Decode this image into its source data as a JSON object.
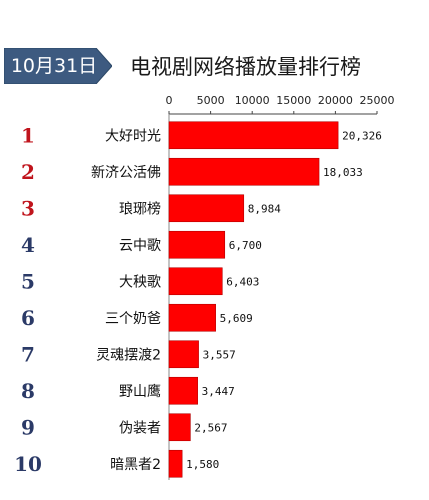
{
  "header": {
    "date": "10月31日",
    "title": "电视剧网络播放量排行榜"
  },
  "colors": {
    "badge": "#3d5a80",
    "badge_dark": "#2c4866",
    "bar": "#ff0000",
    "rank_red": "#c0141c",
    "rank_navy": "#2b3a67"
  },
  "chart_data": {
    "type": "bar",
    "orientation": "horizontal",
    "categories": [
      "大好时光",
      "新济公活佛",
      "琅琊榜",
      "云中歌",
      "大秧歌",
      "三个奶爸",
      "灵魂摆渡2",
      "野山鹰",
      "伪装者",
      "暗黑者2"
    ],
    "ranks": [
      "1",
      "2",
      "3",
      "4",
      "5",
      "6",
      "7",
      "8",
      "9",
      "10"
    ],
    "values": [
      20326,
      18033,
      8984,
      6700,
      6403,
      5609,
      3557,
      3447,
      2567,
      1580
    ],
    "value_labels": [
      "20,326",
      "18,033",
      "8,984",
      "6,700",
      "6,403",
      "5,609",
      "3,557",
      "3,447",
      "2,567",
      "1,580"
    ],
    "x_ticks": [
      "0",
      "5000",
      "10000",
      "15000",
      "20000",
      "25000"
    ],
    "xlim": [
      0,
      25000
    ],
    "axis_position": "top",
    "grid": false,
    "legend": "none"
  }
}
